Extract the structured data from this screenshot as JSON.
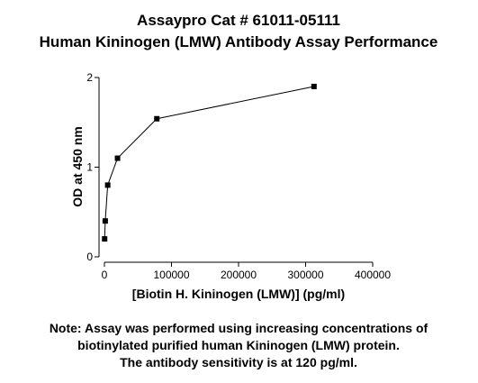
{
  "chart_data": {
    "type": "line",
    "title": [
      "Assaypro Cat # 61011-05111",
      "Human Kininogen (LMW) Antibody Assay Performance"
    ],
    "x_label": "[Biotin H. Kininogen (LMW)] (pg/ml)",
    "y_label": "OD at 450 nm",
    "x": [
      305,
      1221,
      4883,
      19531,
      78125,
      312500
    ],
    "series": [
      {
        "color": "#000000",
        "values": [
          0.2,
          0.4,
          0.8,
          1.1,
          1.54,
          1.9
        ]
      }
    ],
    "xlim": [
      0,
      400000
    ],
    "xticks": [
      0,
      100000,
      200000,
      300000,
      400000
    ],
    "ylim": [
      0,
      2
    ],
    "yticks": [
      0,
      1,
      2
    ],
    "note": [
      "Note: Assay was performed using increasing concentrations of",
      "biotinylated purified human Kininogen (LMW) protein.",
      "The antibody sensitivity is at 120 pg/ml."
    ]
  }
}
